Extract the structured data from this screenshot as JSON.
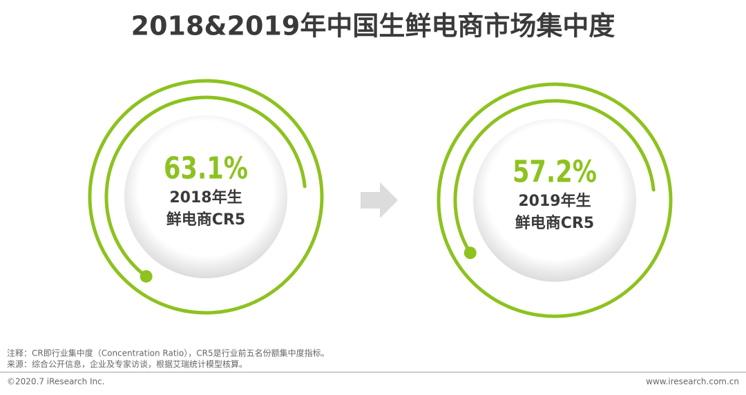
{
  "chart_data": {
    "type": "progress-ring",
    "title": "2018&2019年中国生鲜电商市场集中度",
    "series": [
      {
        "label": [
          "2018年生",
          "鲜电商CR5"
        ],
        "values": [
          63.1
        ],
        "value_labels": [
          "63.1%"
        ],
        "color": "#8dc21f"
      },
      {
        "label": [
          "2019年生",
          "鲜电商CR5"
        ],
        "values": [
          57.2
        ],
        "value_labels": [
          "57.2%"
        ],
        "color": "#8dc21f"
      }
    ]
  },
  "notes": [
    "注释：CR即行业集中度（Concentration Ratio），CR5是行业前五名份额集中度指标。",
    "来源：综合公开信息，企业及专家访谈，根据艾瑞统计模型核算。"
  ],
  "footer": {
    "left": "©2020.7 iResearch Inc.",
    "right": "www.iresearch.com.cn"
  }
}
